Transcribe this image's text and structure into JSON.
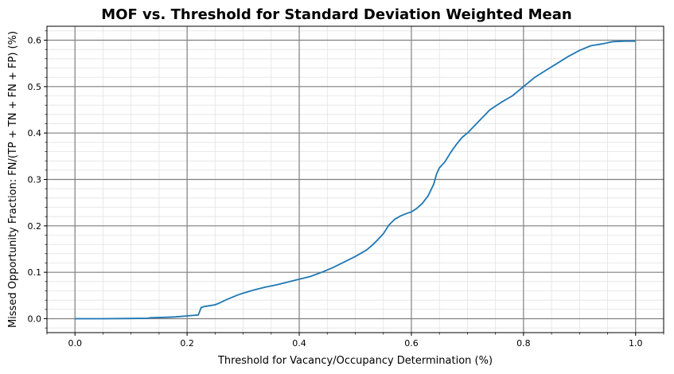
{
  "chart_data": {
    "type": "line",
    "title": "MOF vs. Threshold for Standard Deviation Weighted Mean",
    "xlabel": "Threshold for Vacancy/Occupancy Determination (%)",
    "ylabel": "Missed Opportunity Fraction: FN/(TP + TN + FN + FP) (%)",
    "xlim": [
      -0.05,
      1.05
    ],
    "ylim": [
      -0.03,
      0.63
    ],
    "x_ticks": [
      0.0,
      0.2,
      0.4,
      0.6,
      0.8,
      1.0
    ],
    "x_tick_labels": [
      "0.0",
      "0.2",
      "0.4",
      "0.6",
      "0.8",
      "1.0"
    ],
    "y_ticks": [
      0.0,
      0.1,
      0.2,
      0.3,
      0.4,
      0.5,
      0.6
    ],
    "y_tick_labels": [
      "0.0",
      "0.1",
      "0.2",
      "0.3",
      "0.4",
      "0.5",
      "0.6"
    ],
    "grid": "major and minor",
    "line_color": "#1f77b4",
    "series": [
      {
        "x": [
          0.0,
          0.05,
          0.1,
          0.13,
          0.135,
          0.16,
          0.18,
          0.2,
          0.21,
          0.22,
          0.225,
          0.23,
          0.24,
          0.25,
          0.26,
          0.27,
          0.28,
          0.29,
          0.3,
          0.32,
          0.34,
          0.36,
          0.38,
          0.4,
          0.42,
          0.44,
          0.46,
          0.48,
          0.5,
          0.52,
          0.53,
          0.54,
          0.55,
          0.56,
          0.57,
          0.58,
          0.59,
          0.6,
          0.61,
          0.62,
          0.63,
          0.64,
          0.645,
          0.65,
          0.66,
          0.67,
          0.68,
          0.69,
          0.7,
          0.72,
          0.74,
          0.76,
          0.78,
          0.8,
          0.82,
          0.84,
          0.86,
          0.88,
          0.9,
          0.92,
          0.94,
          0.96,
          0.98,
          1.0
        ],
        "y": [
          0.0,
          0.0,
          0.0005,
          0.001,
          0.002,
          0.003,
          0.004,
          0.006,
          0.007,
          0.008,
          0.024,
          0.026,
          0.028,
          0.03,
          0.035,
          0.041,
          0.046,
          0.051,
          0.055,
          0.062,
          0.068,
          0.073,
          0.079,
          0.085,
          0.091,
          0.1,
          0.11,
          0.122,
          0.134,
          0.148,
          0.158,
          0.17,
          0.183,
          0.202,
          0.214,
          0.221,
          0.226,
          0.23,
          0.238,
          0.249,
          0.265,
          0.29,
          0.312,
          0.325,
          0.338,
          0.358,
          0.375,
          0.39,
          0.4,
          0.425,
          0.45,
          0.466,
          0.48,
          0.5,
          0.52,
          0.535,
          0.55,
          0.565,
          0.578,
          0.588,
          0.592,
          0.597,
          0.598,
          0.598
        ]
      }
    ]
  }
}
